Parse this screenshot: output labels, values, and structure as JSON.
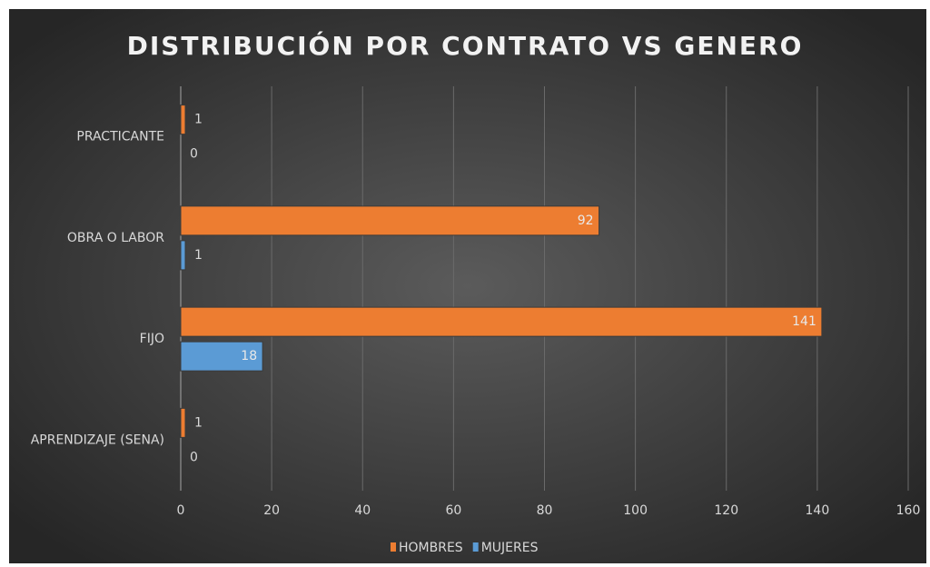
{
  "chart_data": {
    "type": "bar",
    "orientation": "horizontal",
    "title": "DISTRIBUCIÓN POR CONTRATO  VS GENERO",
    "categories": [
      "APRENDIZAJE (SENA)",
      "FIJO",
      "OBRA O LABOR",
      "PRACTICANTE"
    ],
    "series": [
      {
        "name": "HOMBRES",
        "color": "#ed7d31",
        "values": [
          1,
          141,
          92,
          1
        ]
      },
      {
        "name": "MUJERES",
        "color": "#5b9bd5",
        "values": [
          0,
          18,
          1,
          0
        ]
      }
    ],
    "xlim": [
      0,
      160
    ],
    "xticks": [
      0,
      20,
      40,
      60,
      80,
      100,
      120,
      140,
      160
    ],
    "grid": true,
    "legend": "bottom"
  }
}
